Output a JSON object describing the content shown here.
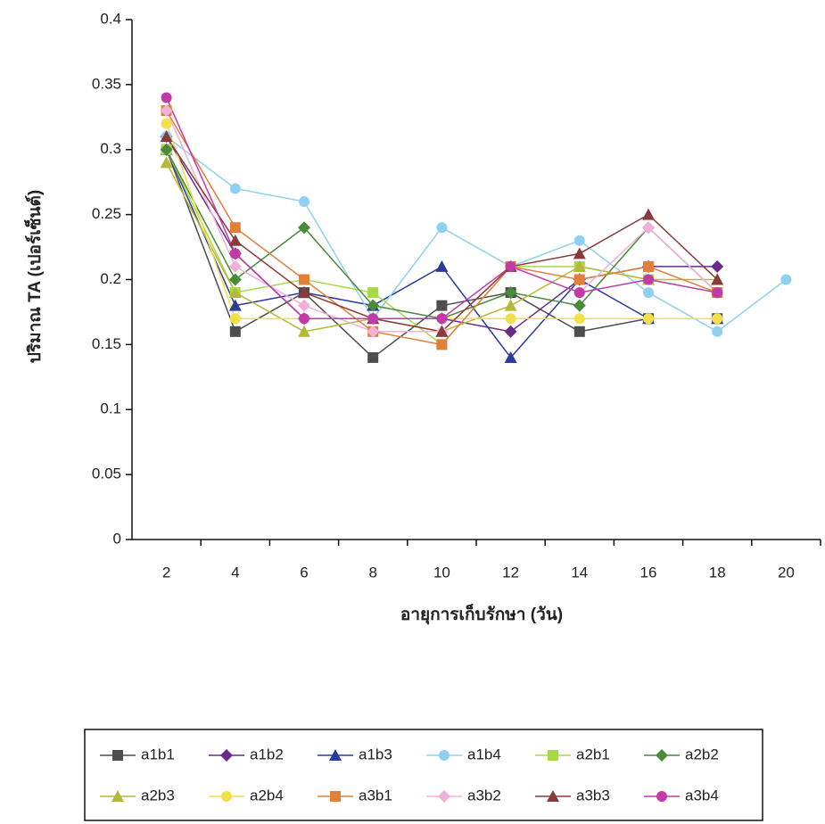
{
  "chart_data": {
    "type": "line",
    "y_label": "ปริมาณ TA (เปอร์เซ็นต์)",
    "x_label": "อายุการเก็บรักษา (วัน)",
    "categories": [
      "2",
      "4",
      "6",
      "8",
      "10",
      "12",
      "14",
      "16",
      "18",
      "20"
    ],
    "ylim": [
      0,
      0.4
    ],
    "yticks": [
      0,
      0.05,
      0.1,
      0.15,
      0.2,
      0.25,
      0.3,
      0.35,
      0.4
    ],
    "series": [
      {
        "name": "a1b1",
        "color": "#4d4d4d",
        "marker": "square",
        "values": [
          0.3,
          0.16,
          0.19,
          0.14,
          0.18,
          0.19,
          0.16,
          0.17,
          0.17,
          null
        ]
      },
      {
        "name": "a1b2",
        "color": "#6a2a8a",
        "marker": "diamond",
        "values": [
          0.31,
          0.22,
          0.17,
          0.17,
          0.17,
          0.16,
          0.2,
          0.21,
          0.21,
          null
        ]
      },
      {
        "name": "a1b3",
        "color": "#2a3c9a",
        "marker": "triangle",
        "values": [
          0.3,
          0.18,
          0.19,
          0.18,
          0.21,
          0.14,
          0.2,
          0.17,
          0.17,
          null
        ]
      },
      {
        "name": "a1b4",
        "color": "#8fd0f0",
        "marker": "circle",
        "values": [
          0.31,
          0.27,
          0.26,
          0.17,
          0.24,
          0.21,
          0.23,
          0.19,
          0.16,
          0.2
        ]
      },
      {
        "name": "a2b1",
        "color": "#a6d94a",
        "marker": "square",
        "values": [
          0.3,
          0.19,
          0.2,
          0.19,
          0.15,
          0.21,
          0.21,
          0.2,
          0.19,
          null
        ]
      },
      {
        "name": "a2b2",
        "color": "#4a8a3a",
        "marker": "diamond",
        "values": [
          0.3,
          0.2,
          0.24,
          0.18,
          0.17,
          0.19,
          0.18,
          0.24,
          0.19,
          null
        ]
      },
      {
        "name": "a2b3",
        "color": "#b5b83a",
        "marker": "triangle",
        "values": [
          0.29,
          0.19,
          0.16,
          0.17,
          0.16,
          0.18,
          0.21,
          0.2,
          0.2,
          null
        ]
      },
      {
        "name": "a2b4",
        "color": "#f2e04a",
        "marker": "circle",
        "values": [
          0.32,
          0.17,
          0.17,
          0.17,
          0.17,
          0.17,
          0.17,
          0.17,
          0.17,
          null
        ]
      },
      {
        "name": "a3b1",
        "color": "#e0803a",
        "marker": "square",
        "values": [
          0.33,
          0.24,
          0.2,
          0.16,
          0.15,
          0.21,
          0.2,
          0.21,
          0.19,
          null
        ]
      },
      {
        "name": "a3b2",
        "color": "#f0b0d8",
        "marker": "diamond",
        "values": [
          0.33,
          0.21,
          0.18,
          0.16,
          0.16,
          0.21,
          0.19,
          0.24,
          0.19,
          null
        ]
      },
      {
        "name": "a3b3",
        "color": "#8a3a3a",
        "marker": "triangle",
        "values": [
          0.31,
          0.23,
          0.19,
          0.17,
          0.16,
          0.21,
          0.22,
          0.25,
          0.2,
          null
        ]
      },
      {
        "name": "a3b4",
        "color": "#c03aa8",
        "marker": "circle",
        "values": [
          0.34,
          0.22,
          0.17,
          0.17,
          0.17,
          0.21,
          0.19,
          0.2,
          0.19,
          null
        ]
      }
    ]
  }
}
